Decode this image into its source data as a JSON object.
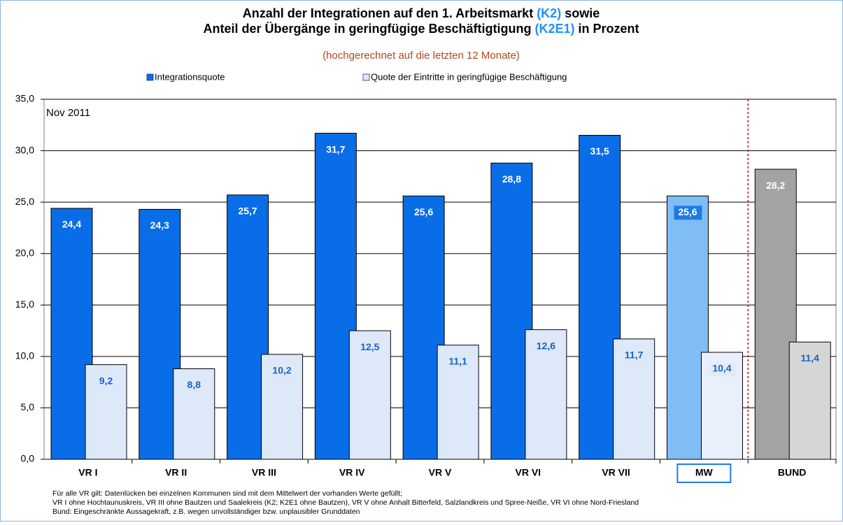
{
  "chart_data": {
    "type": "bar",
    "title_line1": [
      "Anzahl der Integrationen auf den 1. Arbeitsmarkt",
      "(K2)",
      "sowie"
    ],
    "title_line2": [
      "Anteil der Übergänge in geringfügige Beschäftigtigung",
      "(K2E1)",
      "in Prozent"
    ],
    "subtitle": "(hochgerechnet auf die letzten 12 Monate)",
    "annotation": "Nov 2011",
    "categories": [
      "VR I",
      "VR II",
      "VR III",
      "VR IV",
      "VR V",
      "VR VI",
      "VR VII",
      "MW",
      "BUND"
    ],
    "series": [
      {
        "name": "Integrationsquote",
        "color": "#0a6de8",
        "colors": [
          "#0a6de8",
          "#0a6de8",
          "#0a6de8",
          "#0a6de8",
          "#0a6de8",
          "#0a6de8",
          "#0a6de8",
          "#80bcf6",
          "#a3a3a3"
        ],
        "values": [
          24.4,
          24.3,
          25.7,
          31.7,
          25.6,
          28.8,
          31.5,
          25.6,
          28.2
        ],
        "value_labels": [
          "24,4",
          "24,3",
          "25,7",
          "31,7",
          "25,6",
          "28,8",
          "31,5",
          "25,6",
          "28,2"
        ]
      },
      {
        "name": "Quote der Eintritte in geringfügige Beschäftigung",
        "color": "#dde8f9",
        "colors": [
          "#dde8f9",
          "#dde8f9",
          "#dde8f9",
          "#dde8f9",
          "#dde8f9",
          "#dde8f9",
          "#dde8f9",
          "#eaf0fb",
          "#d6d6d6"
        ],
        "values": [
          9.2,
          8.8,
          10.2,
          12.5,
          11.1,
          12.6,
          11.7,
          10.4,
          11.4
        ],
        "value_labels": [
          "9,2",
          "8,8",
          "10,2",
          "12,5",
          "11,1",
          "12,6",
          "11,7",
          "10,4",
          "11,4"
        ]
      }
    ],
    "ylim": [
      0,
      35
    ],
    "yticks": [
      {
        "value": 0,
        "label": "0,0"
      },
      {
        "value": 5,
        "label": "5,0"
      },
      {
        "value": 10,
        "label": "10,0"
      },
      {
        "value": 15,
        "label": "15,0"
      },
      {
        "value": 20,
        "label": "20,0"
      },
      {
        "value": 25,
        "label": "25,0"
      },
      {
        "value": 30,
        "label": "30,0"
      },
      {
        "value": 35,
        "label": "35,0"
      }
    ],
    "grid": true,
    "notes": [
      "Für alle VR gilt: Datenlücken bei einzelnen Kommunen sind mit dem Mittelwert der vorhanden Werte gefüllt;",
      "VR I ohne Hochtaunuskreis, VR  III ohne Bautzen und Saalekreis (K2; K2E1 ohne Bautzen), VR V ohne Anhalt Bitterfeld, Salzlandkreis und Spree-Neiße, VR VI ohne Nord-Friesland",
      "Bund: Eingeschränkte Aussagekraft, z.B. wegen unvollständiger bzw. unplausibler Grunddaten"
    ]
  }
}
